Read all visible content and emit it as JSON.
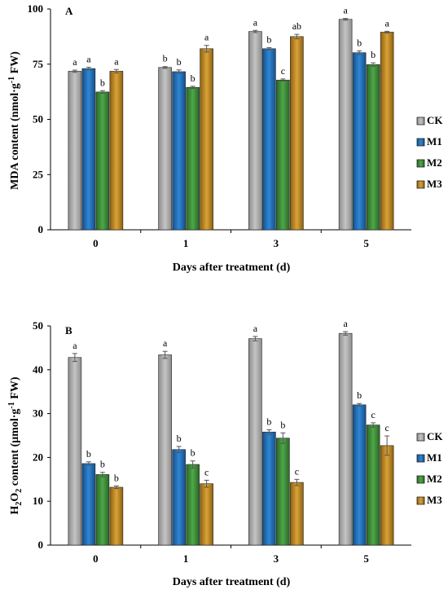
{
  "colors": {
    "CK": "#a6a6a6",
    "M1": "#1f6fb8",
    "M2": "#3f8f3a",
    "M3": "#c08a1e",
    "axis": "#000000",
    "error_bar": "#555555"
  },
  "legend": [
    "CK",
    "M1",
    "M2",
    "M3"
  ],
  "chart_data": [
    {
      "type": "bar",
      "panel_label": "A",
      "xlabel": "Days after treatment (d)",
      "ylabel_main": "MDA content (nmol",
      "ylabel_sup_base": "·g",
      "ylabel_sup": "-1",
      "ylabel_tail": " FW)",
      "categories": [
        "0",
        "1",
        "3",
        "5"
      ],
      "yticks": [
        "0",
        "25",
        "50",
        "75",
        "100"
      ],
      "ylim": [
        0,
        100
      ],
      "grid": false,
      "legend_position": "right",
      "series": [
        {
          "name": "CK",
          "values": [
            71.8,
            73.5,
            89.8,
            95.3
          ],
          "errors": [
            0.5,
            0.4,
            0.5,
            0.4
          ],
          "letters": [
            "a",
            "b",
            "a",
            "a"
          ]
        },
        {
          "name": "M1",
          "values": [
            73.0,
            71.6,
            82.0,
            80.2
          ],
          "errors": [
            0.6,
            0.8,
            0.5,
            0.8
          ],
          "letters": [
            "a",
            "b",
            "b",
            "b"
          ]
        },
        {
          "name": "M2",
          "values": [
            62.4,
            64.5,
            67.8,
            74.8
          ],
          "errors": [
            0.6,
            0.5,
            0.5,
            0.8
          ],
          "letters": [
            "b",
            "b",
            "c",
            "b"
          ]
        },
        {
          "name": "M3",
          "values": [
            71.8,
            82.0,
            87.5,
            89.5
          ],
          "errors": [
            0.8,
            1.5,
            1.0,
            0.4
          ],
          "letters": [
            "a",
            "a",
            "ab",
            "a"
          ]
        }
      ]
    },
    {
      "type": "bar",
      "panel_label": "B",
      "xlabel": "Days after treatment (d)",
      "ylabel_main": "H",
      "ylabel_sub1": "2",
      "ylabel_mid": "O",
      "ylabel_sub2": "2",
      "ylabel_rest": " content (μmol·g",
      "ylabel_sup": "-1",
      "ylabel_tail": " FW)",
      "categories": [
        "0",
        "1",
        "3",
        "5"
      ],
      "yticks": [
        "0",
        "10",
        "20",
        "30",
        "40",
        "50"
      ],
      "ylim": [
        0,
        50
      ],
      "grid": false,
      "legend_position": "right",
      "series": [
        {
          "name": "CK",
          "values": [
            42.8,
            43.4,
            47.1,
            48.3
          ],
          "errors": [
            0.9,
            0.8,
            0.5,
            0.4
          ],
          "letters": [
            "a",
            "a",
            "a",
            "a"
          ]
        },
        {
          "name": "M1",
          "values": [
            18.6,
            21.8,
            25.8,
            32.0
          ],
          "errors": [
            0.4,
            0.7,
            0.5,
            0.3
          ],
          "letters": [
            "b",
            "b",
            "b",
            "b"
          ]
        },
        {
          "name": "M2",
          "values": [
            16.1,
            18.4,
            24.4,
            27.4
          ],
          "errors": [
            0.5,
            0.8,
            1.2,
            0.5
          ],
          "letters": [
            "b",
            "b",
            "b",
            "c"
          ]
        },
        {
          "name": "M3",
          "values": [
            13.2,
            14.0,
            14.3,
            22.7
          ],
          "errors": [
            0.3,
            0.8,
            0.7,
            2.2
          ],
          "letters": [
            "b",
            "c",
            "c",
            "c"
          ]
        }
      ]
    }
  ]
}
